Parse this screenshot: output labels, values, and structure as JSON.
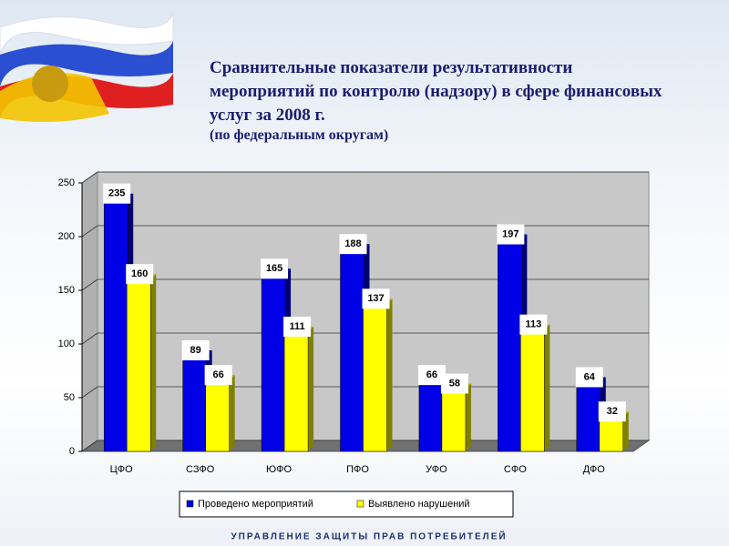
{
  "chart_data": {
    "type": "bar",
    "title": "Сравнительные показатели результативности мероприятий по контролю (надзору) в сфере финансовых услуг за 2008 г.",
    "subtitle": "(по федеральным округам)",
    "footer": "УПРАВЛЕНИЕ ЗАЩИТЫ ПРАВ ПОТРЕБИТЕЛЕЙ",
    "categories": [
      "ЦФО",
      "СЗФО",
      "ЮФО",
      "ПФО",
      "УФО",
      "СФО",
      "ДФО"
    ],
    "series": [
      {
        "name": "Проведено мероприятий",
        "color": "#0000e6",
        "values": [
          235,
          89,
          165,
          188,
          66,
          197,
          64
        ]
      },
      {
        "name": "Выявлено нарушений",
        "color": "#ffff00",
        "values": [
          160,
          66,
          111,
          137,
          58,
          113,
          32
        ]
      }
    ],
    "ylim": [
      0,
      250
    ],
    "yticks": [
      0,
      50,
      100,
      150,
      200,
      250
    ],
    "grid": true,
    "legend": "bottom"
  }
}
